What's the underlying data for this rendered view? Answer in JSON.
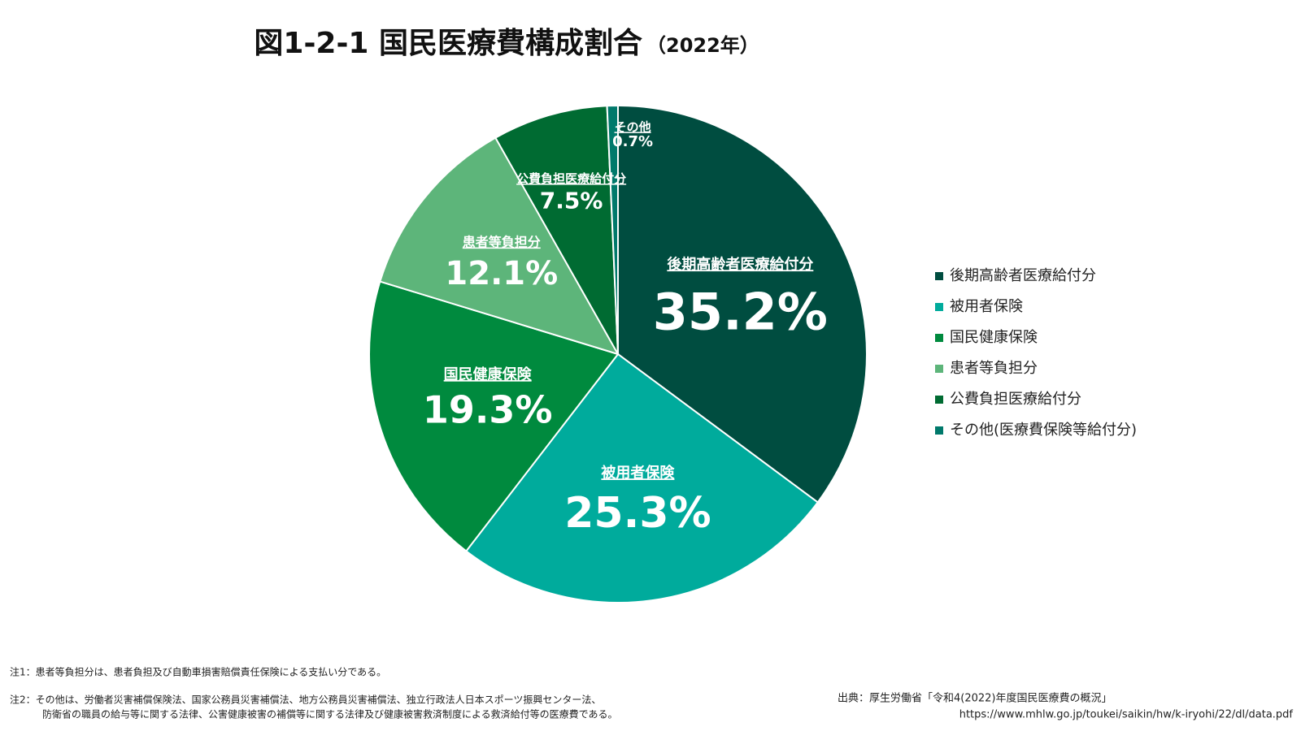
{
  "chart_data": {
    "type": "pie",
    "title": "図1-2-1 国民医療費構成割合",
    "subtitle": "（2022年）",
    "categories": [
      "後期高齢者医療給付分",
      "被用者保険",
      "国民健康保険",
      "患者等負担分",
      "公費負担医療給付分",
      "その他(医療費保険等給付分)"
    ],
    "slice_labels": [
      "後期高齢者医療給付分",
      "被用者保険",
      "国民健康保険",
      "患者等負担分",
      "公費負担医療給付分",
      "その他"
    ],
    "values": [
      35.2,
      25.3,
      19.3,
      12.1,
      7.5,
      0.7
    ],
    "value_labels": [
      "35.2%",
      "25.3%",
      "19.3%",
      "12.1%",
      "7.5%",
      "0.7%"
    ],
    "colors": [
      "#004d40",
      "#00ab9c",
      "#008a3e",
      "#5db57a",
      "#006b32",
      "#00796b"
    ],
    "legend": "right"
  },
  "notes": [
    "注1：患者等負担分は、患者負担及び自動車損害賠償責任保険による支払い分である。",
    "注2：その他は、労働者災害補償保険法、国家公務員災害補償法、地方公務員災害補償法、独立行政法人日本スポーツ振興センター法、",
    "防衛省の職員の給与等に関する法律、公害健康被害の補償等に関する法律及び健康被害救済制度による救済給付等の医療費である。"
  ],
  "source": [
    "出典：厚生労働省「令和4(2022)年度国民医療費の概況」",
    "https://www.mhlw.go.jp/toukei/saikin/hw/k-iryohi/22/dl/data.pdf"
  ]
}
